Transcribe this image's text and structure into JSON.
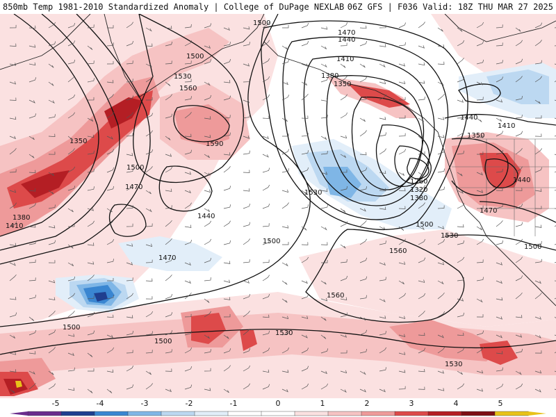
{
  "header": {
    "left_title": "850mb Temp 1981-2010 Standardized Anomaly | College of DuPage NEXLAB",
    "right_title": "06Z GFS | F036 Valid: 18Z THU MAR 27 2025"
  },
  "colors": {
    "neg5": "#6a2c8c",
    "neg4": "#1f3f8f",
    "neg3": "#3a86d1",
    "neg2": "#7fb6e6",
    "neg1": "#bcd8f1",
    "neg05": "#e2eef9",
    "zero_low": "#ffffff",
    "pos05": "#fbe1e1",
    "pos1": "#f6c3c3",
    "pos2": "#ee9a9a",
    "pos3": "#dd4a4a",
    "pos4": "#b41e24",
    "pos5": "#7d0f14",
    "pos6": "#e8c21a",
    "contour": "#111111",
    "coast": "#222222",
    "barb": "#555555"
  },
  "colorbar": {
    "ticks": [
      {
        "label": "-5",
        "x": 80
      },
      {
        "label": "-4",
        "x": 144
      },
      {
        "label": "-3",
        "x": 208
      },
      {
        "label": "-2",
        "x": 272
      },
      {
        "label": "-1",
        "x": 336
      },
      {
        "label": "0",
        "x": 400
      },
      {
        "label": "1",
        "x": 464
      },
      {
        "label": "2",
        "x": 528
      },
      {
        "label": "3",
        "x": 592
      },
      {
        "label": "4",
        "x": 656
      },
      {
        "label": "5",
        "x": 720
      }
    ]
  },
  "contour_labels": [
    "1500",
    "1470",
    "1440",
    "1410",
    "1380",
    "1350",
    "1500",
    "1530",
    "1560",
    "1590",
    "1350",
    "1500",
    "1470",
    "1440",
    "1500",
    "1470",
    "1530",
    "1260",
    "1320",
    "1380",
    "1500",
    "1530",
    "1560",
    "1560",
    "1500",
    "1500",
    "1530",
    "1530",
    "1440",
    "1410",
    "1350",
    "1440",
    "1470",
    "1500",
    "1380",
    "1410"
  ]
}
